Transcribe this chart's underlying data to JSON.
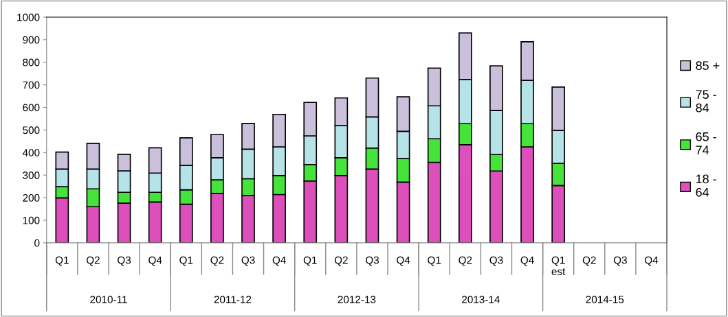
{
  "chart_data": {
    "type": "bar",
    "stacked": true,
    "categories": [
      "Q1",
      "Q2",
      "Q3",
      "Q4",
      "Q1",
      "Q2",
      "Q3",
      "Q4",
      "Q1",
      "Q2",
      "Q3",
      "Q4",
      "Q1",
      "Q2",
      "Q3",
      "Q4",
      "Q1\nest",
      "Q2",
      "Q3",
      "Q4"
    ],
    "series": [
      {
        "name": "18 - 64",
        "color": "#dd4fbb",
        "values": [
          199,
          160,
          176,
          181,
          171,
          219,
          209,
          214,
          274,
          298,
          327,
          269,
          357,
          435,
          318,
          425,
          254,
          null,
          null,
          null
        ]
      },
      {
        "name": "65 - 74",
        "color": "#46e43a",
        "values": [
          50,
          79,
          48,
          43,
          64,
          60,
          75,
          84,
          73,
          79,
          93,
          104,
          104,
          93,
          73,
          103,
          98,
          null,
          null,
          null
        ]
      },
      {
        "name": "75 - 84",
        "color": "#b5e3e8",
        "values": [
          78,
          88,
          95,
          85,
          108,
          98,
          131,
          127,
          127,
          142,
          138,
          121,
          146,
          196,
          196,
          192,
          146,
          null,
          null,
          null
        ]
      },
      {
        "name": "85 +",
        "color": "#cbc0dc",
        "values": [
          75,
          114,
          73,
          112,
          122,
          103,
          114,
          144,
          148,
          123,
          172,
          153,
          167,
          206,
          197,
          171,
          192,
          null,
          null,
          null
        ]
      }
    ],
    "annotations": [
      "2010-11",
      "2011-12",
      "2012-13",
      "2013-14",
      "2014-15"
    ],
    "ylim": [
      0,
      1000
    ],
    "yticks": [
      0,
      100,
      200,
      300,
      400,
      500,
      600,
      700,
      800,
      900,
      1000
    ],
    "grid": false,
    "legend": "right"
  }
}
